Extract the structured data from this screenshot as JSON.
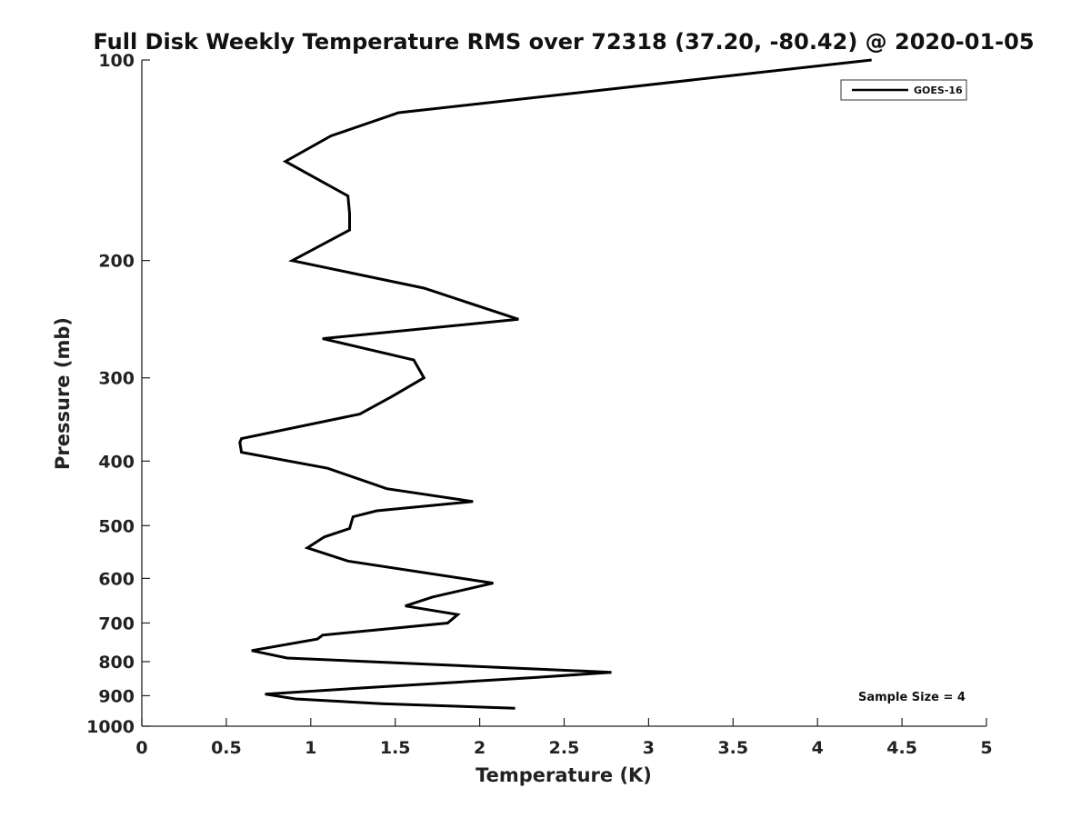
{
  "chart_data": {
    "type": "line",
    "title": "Full Disk Weekly Temperature RMS over 72318 (37.20, -80.42) @ 2020-01-05",
    "xlabel": "Temperature (K)",
    "ylabel": "Pressure (mb)",
    "xlim": [
      0,
      5
    ],
    "ylim": [
      1000,
      100
    ],
    "yscale": "log",
    "y_reversed": true,
    "x_ticks": [
      "0",
      "0.5",
      "1",
      "1.5",
      "2",
      "2.5",
      "3",
      "3.5",
      "4",
      "4.5",
      "5"
    ],
    "y_ticks": [
      "100",
      "200",
      "300",
      "400",
      "500",
      "600",
      "700",
      "800",
      "900",
      "1000"
    ],
    "grid": false,
    "legend": {
      "position": "top-right",
      "entries": [
        "GOES-16"
      ]
    },
    "annotations": [
      "Sample Size = 4"
    ],
    "series": [
      {
        "name": "GOES-16",
        "color": "#000000",
        "x": [
          4.32,
          1.52,
          1.12,
          0.85,
          1.22,
          1.23,
          1.23,
          0.89,
          1.67,
          2.23,
          1.07,
          1.61,
          1.67,
          1.48,
          1.29,
          0.59,
          0.58,
          0.59,
          1.1,
          1.45,
          1.96,
          1.39,
          1.25,
          1.23,
          1.08,
          0.98,
          1.22,
          2.08,
          1.72,
          1.56,
          1.87,
          1.81,
          1.07,
          1.04,
          0.65,
          0.86,
          2.78,
          2.33,
          1.34,
          0.73,
          0.91,
          1.42,
          2.21
        ],
        "y": [
          100,
          120,
          130,
          142,
          160,
          170,
          180,
          200,
          220,
          245,
          262,
          282,
          300,
          320,
          340,
          370,
          375,
          388,
          410,
          440,
          460,
          475,
          485,
          505,
          520,
          540,
          565,
          610,
          640,
          660,
          680,
          700,
          730,
          740,
          770,
          790,
          830,
          845,
          875,
          895,
          910,
          925,
          940
        ]
      }
    ]
  }
}
